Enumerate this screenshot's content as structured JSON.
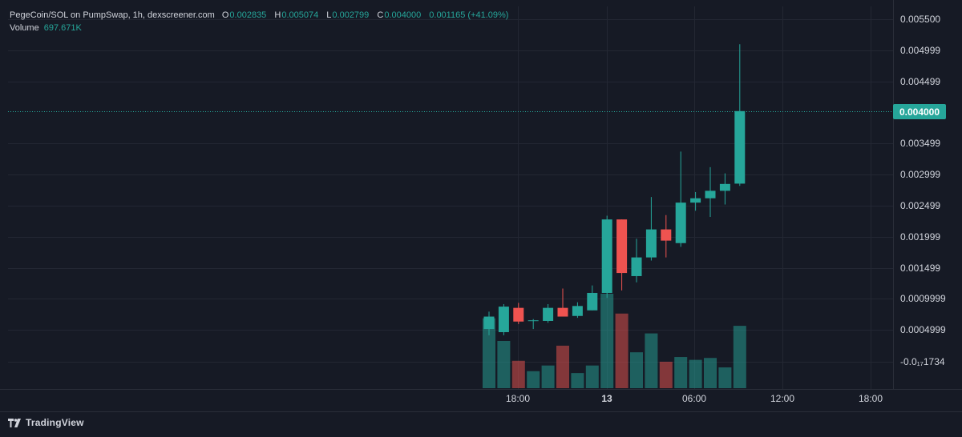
{
  "header": {
    "title": "PegeCoin/SOL on PumpSwap, 1h, dexscreener.com",
    "open_label": "O",
    "open": "0.002835",
    "high_label": "H",
    "high": "0.005074",
    "low_label": "L",
    "low": "0.002799",
    "close_label": "C",
    "close": "0.004000",
    "change": "0.001165 (+41.09%)",
    "volume_label": "Volume",
    "volume": "697.671K"
  },
  "footer": {
    "brand": "TradingView"
  },
  "colors": {
    "background": "#161a25",
    "grid": "#232733",
    "up": "#26a69a",
    "down": "#ef5350",
    "up_volume": "#26a69a",
    "down_volume": "#ef5350",
    "axis_text": "#d1d4dc"
  },
  "chart_data": {
    "type": "candlestick",
    "interval": "1h",
    "price_axis_ticks": [
      "0.005500",
      "0.004999",
      "0.004499",
      "0.003499",
      "0.002999",
      "0.002499",
      "0.001999",
      "0.001499",
      "0.0009999",
      "0.0004999",
      "-0.0₁₇1734"
    ],
    "last_price_label": "0.004000",
    "time_axis_ticks": [
      "18:00",
      "13",
      "06:00",
      "12:00",
      "18:00"
    ],
    "candles": [
      {
        "o": 0.0005,
        "h": 0.00078,
        "l": 0.0004,
        "c": 0.0007
      },
      {
        "o": 0.00045,
        "h": 0.0009,
        "l": 0.0004,
        "c": 0.00086
      },
      {
        "o": 0.00084,
        "h": 0.00092,
        "l": 0.00058,
        "c": 0.00062
      },
      {
        "o": 0.00063,
        "h": 0.00066,
        "l": 0.0005,
        "c": 0.00064
      },
      {
        "o": 0.00063,
        "h": 0.0009,
        "l": 0.0006,
        "c": 0.00084
      },
      {
        "o": 0.00084,
        "h": 0.00115,
        "l": 0.0007,
        "c": 0.0007
      },
      {
        "o": 0.00071,
        "h": 0.00093,
        "l": 0.00068,
        "c": 0.00087
      },
      {
        "o": 0.0008,
        "h": 0.0012,
        "l": 0.0008,
        "c": 0.00108
      },
      {
        "o": 0.00108,
        "h": 0.00232,
        "l": 0.001,
        "c": 0.00226
      },
      {
        "o": 0.00226,
        "h": 0.00226,
        "l": 0.00112,
        "c": 0.0014
      },
      {
        "o": 0.00135,
        "h": 0.00195,
        "l": 0.00125,
        "c": 0.00165
      },
      {
        "o": 0.00165,
        "h": 0.00262,
        "l": 0.0016,
        "c": 0.0021
      },
      {
        "o": 0.0021,
        "h": 0.00233,
        "l": 0.00165,
        "c": 0.00192
      },
      {
        "o": 0.00188,
        "h": 0.00335,
        "l": 0.00182,
        "c": 0.00253
      },
      {
        "o": 0.00253,
        "h": 0.0027,
        "l": 0.0024,
        "c": 0.0026
      },
      {
        "o": 0.0026,
        "h": 0.0031,
        "l": 0.0023,
        "c": 0.00272
      },
      {
        "o": 0.00272,
        "h": 0.003,
        "l": 0.0025,
        "c": 0.00283
      },
      {
        "o": 0.002835,
        "h": 0.005074,
        "l": 0.002799,
        "c": 0.004
      }
    ],
    "volume_relative": [
      0.74,
      0.5,
      0.29,
      0.18,
      0.24,
      0.45,
      0.16,
      0.24,
      1.0,
      0.79,
      0.38,
      0.58,
      0.28,
      0.33,
      0.3,
      0.32,
      0.22,
      0.66
    ]
  }
}
